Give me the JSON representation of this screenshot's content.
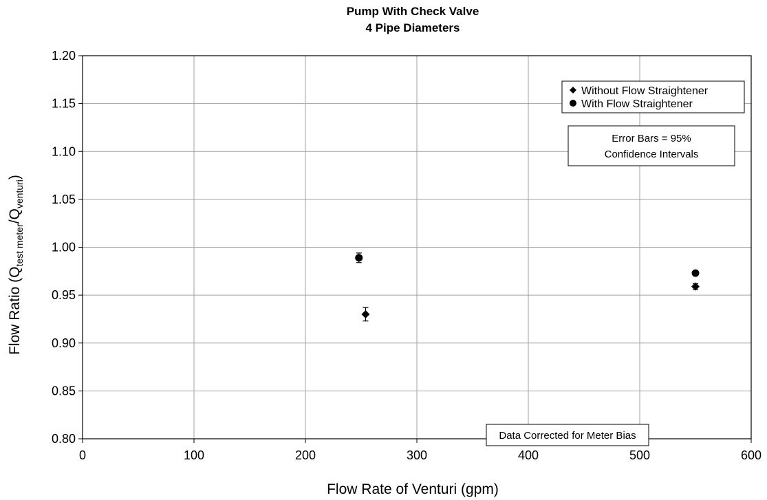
{
  "chart_data": {
    "type": "scatter",
    "title": "Pump With Check Valve",
    "subtitle": "4 Pipe Diameters",
    "xlabel": "Flow Rate of Venturi (gpm)",
    "ylabel": {
      "prefix": "Flow Ratio (Q",
      "sub1": "test meter",
      "mid": "/Q",
      "sub2": "venturi",
      "suffix": ")"
    },
    "xlim": [
      0,
      600
    ],
    "ylim": [
      0.8,
      1.2
    ],
    "x_ticks": [
      0,
      100,
      200,
      300,
      400,
      500,
      600
    ],
    "y_ticks": [
      0.8,
      0.85,
      0.9,
      0.95,
      1.0,
      1.05,
      1.1,
      1.15,
      1.2
    ],
    "x_tick_labels": [
      "0",
      "100",
      "200",
      "300",
      "400",
      "500",
      "600"
    ],
    "y_tick_labels": [
      "0.80",
      "0.85",
      "0.90",
      "0.95",
      "1.00",
      "1.05",
      "1.10",
      "1.15",
      "1.20"
    ],
    "grid": true,
    "legend_position": "top-right",
    "series": [
      {
        "name": "Without Flow Straightener",
        "marker": "diamond",
        "points": [
          {
            "x": 254,
            "y": 0.93,
            "err": 0.007
          },
          {
            "x": 550,
            "y": 0.959,
            "err": 0.003
          }
        ]
      },
      {
        "name": "With Flow Straightener",
        "marker": "circle",
        "points": [
          {
            "x": 248,
            "y": 0.989,
            "err": 0.005
          },
          {
            "x": 550,
            "y": 0.973,
            "err": 0.001
          }
        ]
      }
    ],
    "annotations": {
      "error_bars_line1": "Error Bars = 95%",
      "error_bars_line2": "Confidence Intervals",
      "bias_note": "Data Corrected for Meter Bias"
    }
  }
}
